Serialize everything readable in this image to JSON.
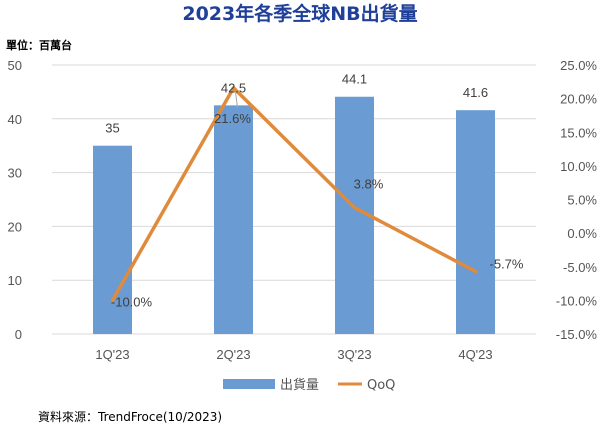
{
  "chart_data": {
    "type": "bar",
    "title": "2023年各季全球NB出貨量",
    "unit_label": "單位：百萬台",
    "source": "資料來源：TrendFroce(10/2023)",
    "categories": [
      "1Q'23",
      "2Q'23",
      "3Q'23",
      "4Q'23"
    ],
    "series": [
      {
        "name": "出貨量",
        "type": "bar",
        "axis": "left",
        "color": "#6a9bd2",
        "values": [
          35,
          42.5,
          44.1,
          41.6
        ],
        "labels": [
          "35",
          "42.5",
          "44.1",
          "41.6"
        ]
      },
      {
        "name": "QoQ",
        "type": "line",
        "axis": "right",
        "color": "#e08a3c",
        "values": [
          -10.0,
          21.6,
          3.8,
          -5.7
        ],
        "labels": [
          "-10.0%",
          "21.6%",
          "3.8%",
          "-5.7%"
        ]
      }
    ],
    "ylim_left": [
      0,
      50
    ],
    "yticks_left": [
      "0",
      "10",
      "20",
      "30",
      "40",
      "50"
    ],
    "ylim_right": [
      -15,
      25
    ],
    "yticks_right": [
      "-15.0%",
      "-10.0%",
      "-5.0%",
      "0.0%",
      "5.0%",
      "10.0%",
      "15.0%",
      "20.0%",
      "25.0%"
    ],
    "grid": true,
    "legend_position": "bottom"
  }
}
